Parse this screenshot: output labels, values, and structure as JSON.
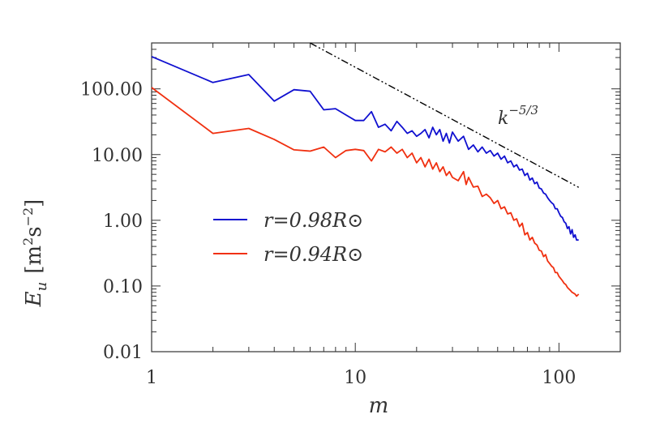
{
  "chart_data": {
    "type": "line",
    "xscale": "log",
    "yscale": "log",
    "xlim": [
      1,
      200
    ],
    "ylim": [
      0.01,
      500
    ],
    "xlabel": "m",
    "ylabel_main": "E",
    "ylabel_sub": "u",
    "ylabel_units": "[m",
    "ylabel_units_exp1": "2",
    "ylabel_units_mid": "s",
    "ylabel_units_exp2": "−2",
    "ylabel_units_close": "]",
    "x_ticks": [
      {
        "value": 1,
        "label": "1"
      },
      {
        "value": 10,
        "label": "10"
      },
      {
        "value": 100,
        "label": "100"
      }
    ],
    "y_ticks": [
      {
        "value": 0.01,
        "label": "0.01"
      },
      {
        "value": 0.1,
        "label": "0.10"
      },
      {
        "value": 1,
        "label": "1.00"
      },
      {
        "value": 10,
        "label": "10.00"
      },
      {
        "value": 100,
        "label": "100.00"
      }
    ],
    "legend_location": "lower-left",
    "series": [
      {
        "name": "r=0.98R⊙",
        "color": "#1010d0",
        "points": [
          [
            1,
            310
          ],
          [
            2,
            125
          ],
          [
            3,
            165
          ],
          [
            4,
            65
          ],
          [
            5,
            97
          ],
          [
            6,
            92
          ],
          [
            7,
            48
          ],
          [
            8,
            50
          ],
          [
            9,
            40
          ],
          [
            10,
            33
          ],
          [
            11,
            33
          ],
          [
            12,
            45
          ],
          [
            13,
            26
          ],
          [
            14,
            29
          ],
          [
            15,
            23
          ],
          [
            16,
            32
          ],
          [
            17,
            26
          ],
          [
            18,
            21
          ],
          [
            19,
            23
          ],
          [
            20,
            19
          ],
          [
            21,
            21
          ],
          [
            22,
            24
          ],
          [
            23,
            18
          ],
          [
            24,
            26
          ],
          [
            25,
            20
          ],
          [
            26,
            24
          ],
          [
            27,
            16
          ],
          [
            28,
            21
          ],
          [
            29,
            15
          ],
          [
            30,
            22
          ],
          [
            32,
            16
          ],
          [
            34,
            19
          ],
          [
            36,
            12
          ],
          [
            38,
            14
          ],
          [
            40,
            11
          ],
          [
            42,
            13
          ],
          [
            44,
            10.5
          ],
          [
            46,
            11.5
          ],
          [
            48,
            9.5
          ],
          [
            50,
            10.5
          ],
          [
            52,
            8.5
          ],
          [
            54,
            9.5
          ],
          [
            56,
            7.5
          ],
          [
            58,
            8
          ],
          [
            60,
            6.5
          ],
          [
            62,
            7
          ],
          [
            64,
            5.8
          ],
          [
            66,
            6
          ],
          [
            68,
            4.8
          ],
          [
            70,
            5.2
          ],
          [
            72,
            4.1
          ],
          [
            74,
            4.4
          ],
          [
            76,
            3.6
          ],
          [
            78,
            3.8
          ],
          [
            80,
            3.1
          ],
          [
            82,
            3.0
          ],
          [
            84,
            2.6
          ],
          [
            86,
            2.5
          ],
          [
            88,
            2.2
          ],
          [
            90,
            2.0
          ],
          [
            92,
            1.85
          ],
          [
            94,
            1.75
          ],
          [
            96,
            1.5
          ],
          [
            98,
            1.5
          ],
          [
            100,
            1.3
          ],
          [
            102,
            1.15
          ],
          [
            104,
            1.1
          ],
          [
            106,
            0.95
          ],
          [
            108,
            0.9
          ],
          [
            110,
            0.75
          ],
          [
            112,
            0.8
          ],
          [
            114,
            0.62
          ],
          [
            116,
            0.72
          ],
          [
            118,
            0.55
          ],
          [
            120,
            0.6
          ],
          [
            122,
            0.5
          ],
          [
            125,
            0.5
          ]
        ]
      },
      {
        "name": "r=0.94R⊙",
        "color": "#f03010",
        "points": [
          [
            1,
            105
          ],
          [
            2,
            21
          ],
          [
            3,
            25
          ],
          [
            4,
            17
          ],
          [
            5,
            11.8
          ],
          [
            6,
            11.3
          ],
          [
            7,
            13
          ],
          [
            8,
            9
          ],
          [
            9,
            11.5
          ],
          [
            10,
            12
          ],
          [
            11,
            11.5
          ],
          [
            12,
            8
          ],
          [
            13,
            12
          ],
          [
            14,
            11
          ],
          [
            15,
            13
          ],
          [
            16,
            10.5
          ],
          [
            17,
            12
          ],
          [
            18,
            9
          ],
          [
            19,
            10.5
          ],
          [
            20,
            7.5
          ],
          [
            21,
            9
          ],
          [
            22,
            6.5
          ],
          [
            23,
            8.5
          ],
          [
            24,
            6
          ],
          [
            25,
            7.5
          ],
          [
            26,
            5.5
          ],
          [
            27,
            6.5
          ],
          [
            28,
            4.8
          ],
          [
            29,
            5.5
          ],
          [
            30,
            4.5
          ],
          [
            32,
            4
          ],
          [
            34,
            5.5
          ],
          [
            35,
            3.5
          ],
          [
            36,
            4.5
          ],
          [
            38,
            3.2
          ],
          [
            40,
            3.3
          ],
          [
            42,
            2.3
          ],
          [
            44,
            2.5
          ],
          [
            46,
            2.2
          ],
          [
            48,
            1.8
          ],
          [
            50,
            2.0
          ],
          [
            52,
            1.5
          ],
          [
            54,
            1.6
          ],
          [
            56,
            1.25
          ],
          [
            58,
            1.3
          ],
          [
            60,
            1.0
          ],
          [
            62,
            1.05
          ],
          [
            64,
            0.8
          ],
          [
            66,
            0.9
          ],
          [
            68,
            0.6
          ],
          [
            70,
            0.65
          ],
          [
            72,
            0.5
          ],
          [
            74,
            0.55
          ],
          [
            76,
            0.45
          ],
          [
            78,
            0.42
          ],
          [
            80,
            0.35
          ],
          [
            82,
            0.34
          ],
          [
            84,
            0.28
          ],
          [
            86,
            0.3
          ],
          [
            88,
            0.24
          ],
          [
            90,
            0.22
          ],
          [
            92,
            0.2
          ],
          [
            94,
            0.19
          ],
          [
            96,
            0.16
          ],
          [
            98,
            0.16
          ],
          [
            100,
            0.14
          ],
          [
            102,
            0.13
          ],
          [
            104,
            0.12
          ],
          [
            106,
            0.11
          ],
          [
            108,
            0.105
          ],
          [
            110,
            0.095
          ],
          [
            112,
            0.09
          ],
          [
            114,
            0.085
          ],
          [
            116,
            0.08
          ],
          [
            118,
            0.078
          ],
          [
            120,
            0.075
          ],
          [
            122,
            0.07
          ],
          [
            125,
            0.075
          ]
        ]
      }
    ],
    "reference_line": {
      "label": "k",
      "label_exp": "−5/3",
      "slope": -1.6667,
      "x_start": 6,
      "x_end": 125,
      "y_start": 500,
      "style": "dash-dot-dot",
      "color": "#000000"
    }
  }
}
